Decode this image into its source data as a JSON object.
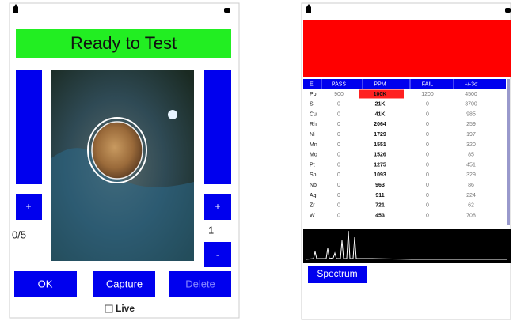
{
  "left_screen": {
    "status": "Ready to Test",
    "counter": "0/5",
    "index": "1",
    "buttons": {
      "plus_left": "+",
      "plus_right": "+",
      "minus": "-",
      "ok": "OK",
      "capture": "Capture",
      "delete": "Delete"
    },
    "live_label": "Live"
  },
  "right_screen": {
    "table": {
      "headers": [
        "El",
        "PASS",
        "PPM",
        "FAIL",
        "+/-3σ"
      ],
      "rows": [
        [
          "Pb",
          "900",
          "100K",
          "1200",
          "4500"
        ],
        [
          "Si",
          "0",
          "21K",
          "0",
          "3700"
        ],
        [
          "Cu",
          "0",
          "41K",
          "0",
          "985"
        ],
        [
          "Rh",
          "0",
          "2064",
          "0",
          "259"
        ],
        [
          "Ni",
          "0",
          "1729",
          "0",
          "197"
        ],
        [
          "Mn",
          "0",
          "1551",
          "0",
          "320"
        ],
        [
          "Mo",
          "0",
          "1526",
          "0",
          "85"
        ],
        [
          "Pt",
          "0",
          "1275",
          "0",
          "451"
        ],
        [
          "Sn",
          "0",
          "1093",
          "0",
          "329"
        ],
        [
          "Nb",
          "0",
          "963",
          "0",
          "86"
        ],
        [
          "Ag",
          "0",
          "911",
          "0",
          "224"
        ],
        [
          "Zr",
          "0",
          "721",
          "0",
          "62"
        ],
        [
          "W",
          "0",
          "453",
          "0",
          "708"
        ]
      ]
    },
    "spectrum_button": "Spectrum"
  }
}
